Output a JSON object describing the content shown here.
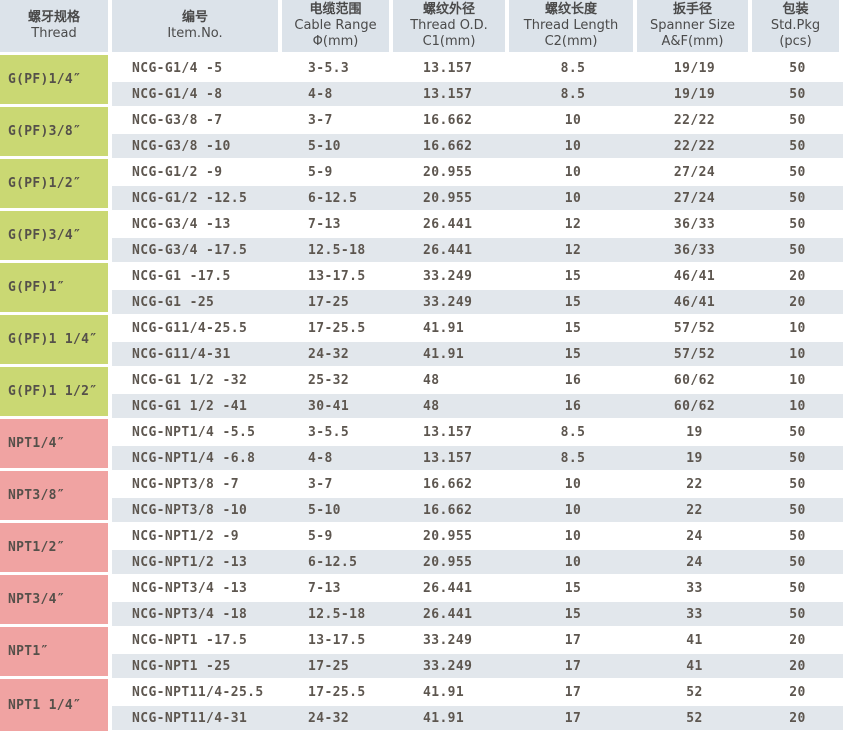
{
  "table": {
    "colors": {
      "header_bg": "#dce3ea",
      "stripe_bg": "#e2e7ec",
      "g_thread_bg": "#cad873",
      "npt_thread_bg": "#f0a3a2",
      "data_text": "#5d564f"
    },
    "columns": [
      {
        "zh": "螺牙规格",
        "en": "Thread",
        "sub": ""
      },
      {
        "zh": "编号",
        "en": "Item.No.",
        "sub": ""
      },
      {
        "zh": "电缆范围",
        "en": "Cable Range",
        "sub": "Φ(mm)"
      },
      {
        "zh": "螺纹外径",
        "en": "Thread O.D.",
        "sub": "C1(mm)"
      },
      {
        "zh": "螺纹长度",
        "en": "Thread Length",
        "sub": "C2(mm)"
      },
      {
        "zh": "扳手径",
        "en": "Spanner Size",
        "sub": "A&F(mm)"
      },
      {
        "zh": "包装",
        "en": "Std.Pkg",
        "sub": "(pcs)"
      }
    ],
    "groups": [
      {
        "thread": "G(PF)1/4″",
        "type": "G",
        "rows": [
          {
            "item": "NCG-G1/4 -5",
            "cable_range": "3-5.3",
            "thread_od": "13.157",
            "thread_length": "8.5",
            "spanner": "19/19",
            "pkg": "50"
          },
          {
            "item": "NCG-G1/4 -8",
            "cable_range": "4-8",
            "thread_od": "13.157",
            "thread_length": "8.5",
            "spanner": "19/19",
            "pkg": "50"
          }
        ]
      },
      {
        "thread": "G(PF)3/8″",
        "type": "G",
        "rows": [
          {
            "item": "NCG-G3/8 -7",
            "cable_range": "3-7",
            "thread_od": "16.662",
            "thread_length": "10",
            "spanner": "22/22",
            "pkg": "50"
          },
          {
            "item": "NCG-G3/8 -10",
            "cable_range": "5-10",
            "thread_od": "16.662",
            "thread_length": "10",
            "spanner": "22/22",
            "pkg": "50"
          }
        ]
      },
      {
        "thread": "G(PF)1/2″",
        "type": "G",
        "rows": [
          {
            "item": "NCG-G1/2 -9",
            "cable_range": "5-9",
            "thread_od": "20.955",
            "thread_length": "10",
            "spanner": "27/24",
            "pkg": "50"
          },
          {
            "item": "NCG-G1/2 -12.5",
            "cable_range": "6-12.5",
            "thread_od": "20.955",
            "thread_length": "10",
            "spanner": "27/24",
            "pkg": "50"
          }
        ]
      },
      {
        "thread": "G(PF)3/4″",
        "type": "G",
        "rows": [
          {
            "item": "NCG-G3/4 -13",
            "cable_range": "7-13",
            "thread_od": "26.441",
            "thread_length": "12",
            "spanner": "36/33",
            "pkg": "50"
          },
          {
            "item": "NCG-G3/4 -17.5",
            "cable_range": "12.5-18",
            "thread_od": "26.441",
            "thread_length": "12",
            "spanner": "36/33",
            "pkg": "50"
          }
        ]
      },
      {
        "thread": "G(PF)1″",
        "type": "G",
        "rows": [
          {
            "item": "NCG-G1 -17.5",
            "cable_range": "13-17.5",
            "thread_od": "33.249",
            "thread_length": "15",
            "spanner": "46/41",
            "pkg": "20"
          },
          {
            "item": "NCG-G1 -25",
            "cable_range": "17-25",
            "thread_od": "33.249",
            "thread_length": "15",
            "spanner": "46/41",
            "pkg": "20"
          }
        ]
      },
      {
        "thread": "G(PF)1 1/4″",
        "type": "G",
        "rows": [
          {
            "item": "NCG-G11/4-25.5",
            "cable_range": "17-25.5",
            "thread_od": "41.91",
            "thread_length": "15",
            "spanner": "57/52",
            "pkg": "10"
          },
          {
            "item": "NCG-G11/4-31",
            "cable_range": "24-32",
            "thread_od": "41.91",
            "thread_length": "15",
            "spanner": "57/52",
            "pkg": "10"
          }
        ]
      },
      {
        "thread": "G(PF)1 1/2″",
        "type": "G",
        "rows": [
          {
            "item": "NCG-G1 1/2 -32",
            "cable_range": "25-32",
            "thread_od": "48",
            "thread_length": "16",
            "spanner": "60/62",
            "pkg": "10"
          },
          {
            "item": "NCG-G1 1/2 -41",
            "cable_range": "30-41",
            "thread_od": "48",
            "thread_length": "16",
            "spanner": "60/62",
            "pkg": "10"
          }
        ]
      },
      {
        "thread": "NPT1/4″",
        "type": "NPT",
        "rows": [
          {
            "item": "NCG-NPT1/4 -5.5",
            "cable_range": "3-5.5",
            "thread_od": "13.157",
            "thread_length": "8.5",
            "spanner": "19",
            "pkg": "50"
          },
          {
            "item": "NCG-NPT1/4 -6.8",
            "cable_range": "4-8",
            "thread_od": "13.157",
            "thread_length": "8.5",
            "spanner": "19",
            "pkg": "50"
          }
        ]
      },
      {
        "thread": "NPT3/8″",
        "type": "NPT",
        "rows": [
          {
            "item": "NCG-NPT3/8 -7",
            "cable_range": "3-7",
            "thread_od": "16.662",
            "thread_length": "10",
            "spanner": "22",
            "pkg": "50"
          },
          {
            "item": "NCG-NPT3/8 -10",
            "cable_range": "5-10",
            "thread_od": "16.662",
            "thread_length": "10",
            "spanner": "22",
            "pkg": "50"
          }
        ]
      },
      {
        "thread": "NPT1/2″",
        "type": "NPT",
        "rows": [
          {
            "item": "NCG-NPT1/2 -9",
            "cable_range": "5-9",
            "thread_od": "20.955",
            "thread_length": "10",
            "spanner": "24",
            "pkg": "50"
          },
          {
            "item": "NCG-NPT1/2 -13",
            "cable_range": "6-12.5",
            "thread_od": "20.955",
            "thread_length": "10",
            "spanner": "24",
            "pkg": "50"
          }
        ]
      },
      {
        "thread": "NPT3/4″",
        "type": "NPT",
        "rows": [
          {
            "item": "NCG-NPT3/4 -13",
            "cable_range": "7-13",
            "thread_od": "26.441",
            "thread_length": "15",
            "spanner": "33",
            "pkg": "50"
          },
          {
            "item": "NCG-NPT3/4 -18",
            "cable_range": "12.5-18",
            "thread_od": "26.441",
            "thread_length": "15",
            "spanner": "33",
            "pkg": "50"
          }
        ]
      },
      {
        "thread": "NPT1″",
        "type": "NPT",
        "rows": [
          {
            "item": "NCG-NPT1 -17.5",
            "cable_range": "13-17.5",
            "thread_od": "33.249",
            "thread_length": "17",
            "spanner": "41",
            "pkg": "20"
          },
          {
            "item": "NCG-NPT1 -25",
            "cable_range": "17-25",
            "thread_od": "33.249",
            "thread_length": "17",
            "spanner": "41",
            "pkg": "20"
          }
        ]
      },
      {
        "thread": "NPT1 1/4″",
        "type": "NPT",
        "rows": [
          {
            "item": "NCG-NPT11/4-25.5",
            "cable_range": "17-25.5",
            "thread_od": "41.91",
            "thread_length": "17",
            "spanner": "52",
            "pkg": "20"
          },
          {
            "item": "NCG-NPT11/4-31",
            "cable_range": "24-32",
            "thread_od": "41.91",
            "thread_length": "17",
            "spanner": "52",
            "pkg": "20"
          }
        ]
      }
    ]
  }
}
